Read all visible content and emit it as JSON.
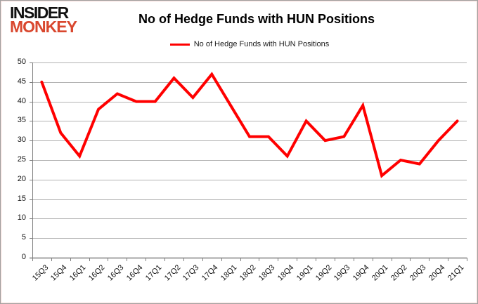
{
  "logo": {
    "line1": "INSIDER",
    "line2": "MONKEY"
  },
  "header": {
    "title": "No of Hedge Funds with HUN Positions"
  },
  "legend": {
    "label": "No of Hedge Funds with HUN Positions"
  },
  "colors": {
    "line": "#ff0000",
    "logo_black": "#111111",
    "logo_red": "#d9472e",
    "gridline": "#b3b3b3",
    "axis": "#808080",
    "text": "#000000"
  },
  "chart_data": {
    "type": "line",
    "title": "No of Hedge Funds with HUN Positions",
    "series_name": "No of Hedge Funds with HUN Positions",
    "categories": [
      "15Q3",
      "15Q4",
      "16Q1",
      "16Q2",
      "16Q3",
      "16Q4",
      "17Q1",
      "17Q2",
      "17Q3",
      "17Q4",
      "18Q1",
      "18Q2",
      "18Q3",
      "18Q4",
      "19Q1",
      "19Q2",
      "19Q3",
      "19Q4",
      "20Q1",
      "20Q2",
      "20Q3",
      "20Q4",
      "21Q1"
    ],
    "values": [
      45,
      32,
      26,
      38,
      42,
      40,
      40,
      46,
      41,
      47,
      39,
      31,
      31,
      26,
      35,
      30,
      31,
      39,
      21,
      25,
      24,
      30,
      35
    ],
    "xlabel": "",
    "ylabel": "",
    "ylim": [
      0,
      50
    ],
    "ytick_step": 5,
    "yticks": [
      0,
      5,
      10,
      15,
      20,
      25,
      30,
      35,
      40,
      45,
      50
    ],
    "grid": "horizontal",
    "legend_position": "top",
    "line_color": "#ff0000"
  }
}
